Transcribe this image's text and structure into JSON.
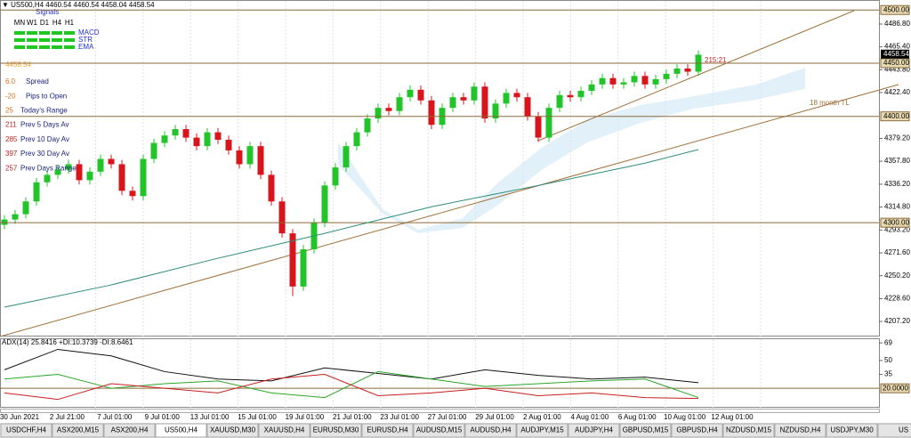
{
  "header": {
    "symbol_line": "▼ US500,H4 4460.54 4460.54 4458.04 4458.54"
  },
  "signals_panel": {
    "title": "Signals",
    "timeframes": [
      "MN",
      "W1",
      "D1",
      "H4",
      "H1"
    ],
    "indicators": [
      "MACD",
      "STR",
      "EMA"
    ]
  },
  "info_panel": {
    "price": "4458.54",
    "rows": [
      [
        "6.0",
        "Spread"
      ],
      [
        "-20",
        "Pips to Open"
      ],
      [
        "25",
        "Today's Range"
      ],
      [
        "211",
        "Prev 5 Days Av"
      ],
      [
        "285",
        "Prev 10 Day Av"
      ],
      [
        "397",
        "Prev 30 Day Av"
      ],
      [
        "257",
        "Prev Days Range"
      ]
    ]
  },
  "annotations": {
    "countdown": "215:21",
    "trendline_label": "18 month TL"
  },
  "chart_data": {
    "type": "candlestick",
    "candles": [
      [
        4298,
        4307,
        4294,
        4303
      ],
      [
        4303,
        4312,
        4299,
        4308
      ],
      [
        4308,
        4324,
        4304,
        4320
      ],
      [
        4320,
        4342,
        4316,
        4338
      ],
      [
        4338,
        4349,
        4334,
        4345
      ],
      [
        4345,
        4354,
        4341,
        4350
      ],
      [
        4350,
        4359,
        4346,
        4355
      ],
      [
        4355,
        4359,
        4336,
        4340
      ],
      [
        4340,
        4352,
        4336,
        4348
      ],
      [
        4348,
        4364,
        4344,
        4360
      ],
      [
        4360,
        4364,
        4351,
        4355
      ],
      [
        4355,
        4359,
        4326,
        4330
      ],
      [
        4330,
        4334,
        4321,
        4325
      ],
      [
        4325,
        4364,
        4321,
        4360
      ],
      [
        4360,
        4379,
        4356,
        4375
      ],
      [
        4375,
        4386,
        4371,
        4382
      ],
      [
        4382,
        4392,
        4378,
        4388
      ],
      [
        4388,
        4392,
        4376,
        4380
      ],
      [
        4380,
        4384,
        4368,
        4372
      ],
      [
        4372,
        4389,
        4368,
        4385
      ],
      [
        4385,
        4389,
        4374,
        4378
      ],
      [
        4378,
        4382,
        4364,
        4368
      ],
      [
        4368,
        4372,
        4351,
        4355
      ],
      [
        4355,
        4376,
        4351,
        4372
      ],
      [
        4372,
        4376,
        4341,
        4345
      ],
      [
        4345,
        4349,
        4316,
        4320
      ],
      [
        4320,
        4324,
        4286,
        4290
      ],
      [
        4290,
        4294,
        4231,
        4240
      ],
      [
        4240,
        4279,
        4236,
        4275
      ],
      [
        4275,
        4304,
        4271,
        4300
      ],
      [
        4300,
        4339,
        4296,
        4335
      ],
      [
        4335,
        4356,
        4331,
        4352
      ],
      [
        4352,
        4376,
        4348,
        4372
      ],
      [
        4372,
        4389,
        4368,
        4385
      ],
      [
        4385,
        4402,
        4381,
        4398
      ],
      [
        4398,
        4412,
        4394,
        4408
      ],
      [
        4408,
        4412,
        4401,
        4405
      ],
      [
        4405,
        4422,
        4401,
        4418
      ],
      [
        4418,
        4429,
        4414,
        4425
      ],
      [
        4425,
        4429,
        4411,
        4415
      ],
      [
        4415,
        4419,
        4388,
        4392
      ],
      [
        4392,
        4412,
        4388,
        4408
      ],
      [
        4408,
        4422,
        4404,
        4418
      ],
      [
        4418,
        4422,
        4411,
        4415
      ],
      [
        4415,
        4432,
        4411,
        4428
      ],
      [
        4428,
        4432,
        4394,
        4398
      ],
      [
        4398,
        4416,
        4394,
        4412
      ],
      [
        4412,
        4426,
        4408,
        4422
      ],
      [
        4422,
        4426,
        4414,
        4418
      ],
      [
        4418,
        4422,
        4396,
        4400
      ],
      [
        4400,
        4404,
        4376,
        4380
      ],
      [
        4380,
        4412,
        4376,
        4408
      ],
      [
        4408,
        4424,
        4404,
        4420
      ],
      [
        4420,
        4424,
        4414,
        4418
      ],
      [
        4418,
        4428,
        4414,
        4424
      ],
      [
        4424,
        4434,
        4420,
        4430
      ],
      [
        4430,
        4440,
        4426,
        4436
      ],
      [
        4436,
        4440,
        4426,
        4430
      ],
      [
        4430,
        4436,
        4426,
        4432
      ],
      [
        4432,
        4442,
        4428,
        4438
      ],
      [
        4438,
        4442,
        4426,
        4430
      ],
      [
        4430,
        4439,
        4426,
        4435
      ],
      [
        4435,
        4444,
        4431,
        4440
      ],
      [
        4440,
        4449,
        4436,
        4445
      ],
      [
        4445,
        4449,
        4438,
        4442
      ],
      [
        4442,
        4462,
        4438,
        4458
      ]
    ],
    "up_color": "#22c42a",
    "down_color": "#d8141c",
    "ylim": [
      4193,
      4509.4
    ],
    "yticks": [
      {
        "value": 4486.8,
        "label": "4486.80"
      },
      {
        "value": 4465.4,
        "label": "4465.40"
      },
      {
        "value": 4443.8,
        "label": "4443.80"
      },
      {
        "value": 4422.4,
        "label": "4422.40"
      },
      {
        "value": 4379.2,
        "label": "4379.20"
      },
      {
        "value": 4357.8,
        "label": "4357.80"
      },
      {
        "value": 4336.2,
        "label": "4336.20"
      },
      {
        "value": 4314.8,
        "label": "4314.80"
      },
      {
        "value": 4293.2,
        "label": "4293.20"
      },
      {
        "value": 4271.6,
        "label": "4271.60"
      },
      {
        "value": 4250.2,
        "label": "4250.20"
      },
      {
        "value": 4228.6,
        "label": "4228.60"
      },
      {
        "value": 4207.2,
        "label": "4207.20"
      }
    ],
    "levels": [
      {
        "value": 4500,
        "label": "4500.00"
      },
      {
        "value": 4450,
        "label": "4450.00"
      },
      {
        "value": 4400,
        "label": "4400.00"
      },
      {
        "value": 4300,
        "label": "4300.00"
      }
    ],
    "current_price": {
      "value": 4458.54,
      "label": "4458.54"
    },
    "x_labels": [
      "30 Jun 2021",
      "2 Jul 21:00",
      "7 Jul 01:00",
      "9 Jul 01:00",
      "13 Jul 01:00",
      "15 Jul 01:00",
      "19 Jul 01:00",
      "21 Jul 01:00",
      "23 Jul 01:00",
      "27 Jul 01:00",
      "29 Jul 01:00",
      "2 Aug 01:00",
      "4 Aug 01:00",
      "6 Aug 01:00",
      "10 Aug 01:00",
      "12 Aug 01:00"
    ],
    "ma": {
      "color": "#2e8b7a",
      "x": [
        0,
        10,
        20,
        30,
        40,
        50,
        60,
        65
      ],
      "values": [
        4220.6,
        4241.5,
        4266.6,
        4290,
        4315,
        4335,
        4356,
        4368.8
      ]
    }
  },
  "indicator": {
    "label": "ADX(14) 25.8416 +DI:10.3739 -DI:8.6461",
    "ylim": [
      0,
      73
    ],
    "yticks": [
      69,
      50,
      35
    ],
    "level": {
      "value": 20,
      "label": "20.0000"
    },
    "x": [
      0,
      5,
      10,
      15,
      20,
      25,
      30,
      35,
      40,
      45,
      50,
      55,
      60,
      65
    ],
    "series": [
      {
        "color": "#111111",
        "values": [
          40,
          62,
          55,
          38,
          30,
          28,
          42,
          36,
          30,
          40,
          34,
          30,
          32,
          26
        ]
      },
      {
        "color": "#2aa52a",
        "values": [
          30,
          35,
          20,
          25,
          28,
          15,
          10,
          38,
          30,
          22,
          25,
          28,
          30,
          10
        ]
      },
      {
        "color": "#c81e1e",
        "values": [
          15,
          8,
          25,
          20,
          15,
          30,
          35,
          12,
          15,
          20,
          12,
          15,
          10,
          9
        ]
      }
    ]
  },
  "tabs": {
    "items": [
      "USDCHF,H4",
      "ASX200,M15",
      "ASX200,H4",
      "US500,H4",
      "XAUUSD,M30",
      "XAUUSD,H4",
      "EURUSD,M30",
      "EURUSD,H4",
      "AUDUSD,M15",
      "AUDUSD,H4",
      "AUDJPY,M15",
      "AUDJPY,H4",
      "GBPUSD,M15",
      "GBPUSD,H4",
      "NZDUSD,M15",
      "NZDUSD,H4",
      "USDJPY,M30",
      "US"
    ],
    "active": 3
  }
}
